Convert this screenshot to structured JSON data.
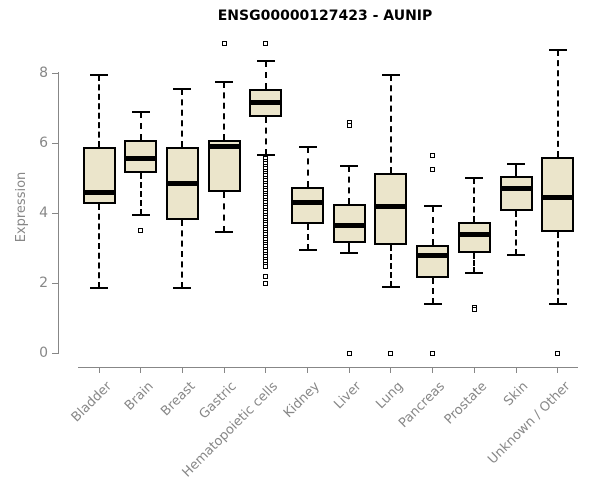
{
  "chart": {
    "title": "ENSG00000127423 - AUNIP",
    "ylabel": "Expression"
  },
  "colors": {
    "box_fill": "#EBE5CB",
    "box_border": "#000000",
    "axis": "#878787",
    "title": "#000000"
  },
  "chart_data": {
    "type": "boxplot",
    "title": "ENSG00000127423 - AUNIP",
    "xlabel": "",
    "ylabel": "Expression",
    "ylim": [
      0,
      9
    ],
    "yticks": [
      0,
      2,
      4,
      6,
      8
    ],
    "grid": false,
    "legend": "none",
    "categories": [
      "Bladder",
      "Brain",
      "Breast",
      "Gastric",
      "Hematopoietic cells",
      "Kidney",
      "Liver",
      "Lung",
      "Pancreas",
      "Prostate",
      "Skin",
      "Unknown / Other"
    ],
    "series": [
      {
        "name": "Bladder",
        "whisker_low": 1.85,
        "q1": 4.25,
        "median": 4.6,
        "q3": 5.9,
        "whisker_high": 7.95,
        "outliers": []
      },
      {
        "name": "Brain",
        "whisker_low": 3.95,
        "q1": 5.15,
        "median": 5.55,
        "q3": 6.1,
        "whisker_high": 6.9,
        "outliers": [
          3.5
        ]
      },
      {
        "name": "Breast",
        "whisker_low": 1.85,
        "q1": 3.8,
        "median": 4.85,
        "q3": 5.9,
        "whisker_high": 7.55,
        "outliers": []
      },
      {
        "name": "Gastric",
        "whisker_low": 3.45,
        "q1": 4.6,
        "median": 5.9,
        "q3": 6.1,
        "whisker_high": 7.75,
        "outliers": [
          8.85
        ]
      },
      {
        "name": "Hematopoietic cells",
        "whisker_low": 5.65,
        "q1": 6.75,
        "median": 7.15,
        "q3": 7.55,
        "whisker_high": 8.35,
        "outliers": [
          8.85,
          5.55,
          5.48,
          5.41,
          5.34,
          5.27,
          5.2,
          5.13,
          5.06,
          4.99,
          4.92,
          4.85,
          4.78,
          4.71,
          4.64,
          4.57,
          4.5,
          4.43,
          4.36,
          4.29,
          4.22,
          4.15,
          4.08,
          4.01,
          3.94,
          3.87,
          3.8,
          3.73,
          3.66,
          3.59,
          3.52,
          3.45,
          3.38,
          3.31,
          3.24,
          3.17,
          3.1,
          3.03,
          2.96,
          2.89,
          2.82,
          2.75,
          2.68,
          2.61,
          2.54,
          2.47,
          2.2,
          2.0
        ]
      },
      {
        "name": "Kidney",
        "whisker_low": 2.95,
        "q1": 3.7,
        "median": 4.3,
        "q3": 4.75,
        "whisker_high": 5.9,
        "outliers": []
      },
      {
        "name": "Liver",
        "whisker_low": 2.85,
        "q1": 3.15,
        "median": 3.65,
        "q3": 4.25,
        "whisker_high": 5.35,
        "outliers": [
          6.6,
          6.5,
          0.0
        ]
      },
      {
        "name": "Lung",
        "whisker_low": 1.9,
        "q1": 3.1,
        "median": 4.2,
        "q3": 5.15,
        "whisker_high": 7.95,
        "outliers": [
          0.0
        ]
      },
      {
        "name": "Pancreas",
        "whisker_low": 1.4,
        "q1": 2.15,
        "median": 2.8,
        "q3": 3.1,
        "whisker_high": 4.2,
        "outliers": [
          5.65,
          5.25,
          0.0
        ]
      },
      {
        "name": "Prostate",
        "whisker_low": 2.3,
        "q1": 2.85,
        "median": 3.4,
        "q3": 3.75,
        "whisker_high": 5.0,
        "outliers": [
          1.3,
          1.25
        ]
      },
      {
        "name": "Skin",
        "whisker_low": 2.8,
        "q1": 4.05,
        "median": 4.7,
        "q3": 5.05,
        "whisker_high": 5.4,
        "outliers": []
      },
      {
        "name": "Unknown / Other",
        "whisker_low": 1.4,
        "q1": 3.45,
        "median": 4.45,
        "q3": 5.6,
        "whisker_high": 8.65,
        "outliers": [
          0.0
        ]
      }
    ]
  }
}
